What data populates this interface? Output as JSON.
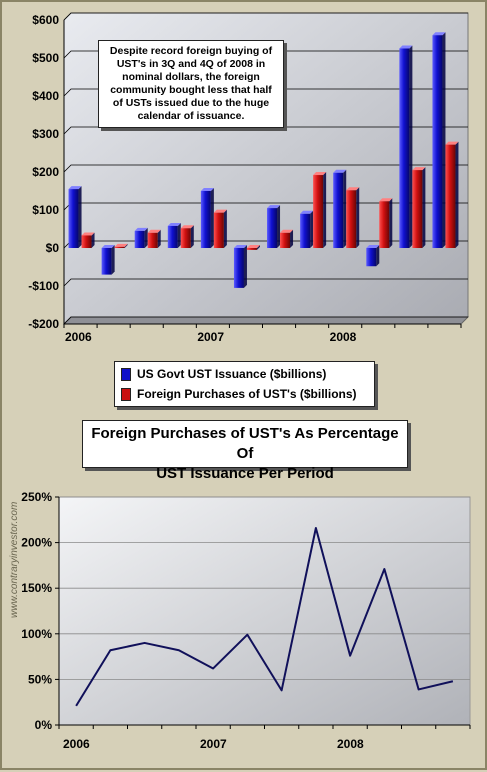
{
  "watermark": "www.contraryinvestor.com",
  "chart_data": [
    {
      "type": "bar",
      "categories": [
        "2006",
        "",
        "",
        "",
        "2007",
        "",
        "",
        "",
        "2008",
        "",
        "",
        ""
      ],
      "tick_labels": [
        "2006",
        "2007",
        "2008"
      ],
      "series": [
        {
          "name": "US Govt UST Issuance ($billions)",
          "color": "#1010c8",
          "values": [
            155,
            -70,
            45,
            58,
            150,
            -105,
            105,
            90,
            198,
            -48,
            525,
            560
          ]
        },
        {
          "name": "Foreign Purchases of UST's ($billions)",
          "color": "#c81010",
          "values": [
            33,
            3,
            40,
            52,
            93,
            -5,
            40,
            192,
            152,
            123,
            205,
            272
          ]
        }
      ],
      "ylim": [
        -200,
        600
      ],
      "yticks": [
        -200,
        -100,
        0,
        100,
        200,
        300,
        400,
        500,
        600
      ],
      "ytick_labels": [
        "-$200",
        "-$100",
        "$0",
        "$100",
        "$200",
        "$300",
        "$400",
        "$500",
        "$600"
      ],
      "grid": true,
      "legend": "bottom-left",
      "annotation": "Despite record foreign buying of UST's in 3Q and 4Q of 2008 in nominal dollars, the foreign community bought less that half of USTs issued due to the huge calendar of issuance."
    },
    {
      "type": "line",
      "title_line1": "Foreign Purchases of UST's As Percentage Of",
      "title_line2": "UST Issuance Per Period",
      "categories": [
        "2006",
        "",
        "",
        "",
        "2007",
        "",
        "",
        "",
        "2008",
        "",
        "",
        ""
      ],
      "tick_labels": [
        "2006",
        "2007",
        "2008"
      ],
      "series": [
        {
          "color": "#10105a",
          "values": [
            21,
            82,
            90,
            82,
            62,
            99,
            38,
            216,
            76,
            171,
            39,
            48
          ]
        }
      ],
      "ylim": [
        0,
        250
      ],
      "yticks": [
        0,
        50,
        100,
        150,
        200,
        250
      ],
      "ytick_labels": [
        "0%",
        "50%",
        "100%",
        "150%",
        "200%",
        "250%"
      ],
      "grid": true
    }
  ]
}
